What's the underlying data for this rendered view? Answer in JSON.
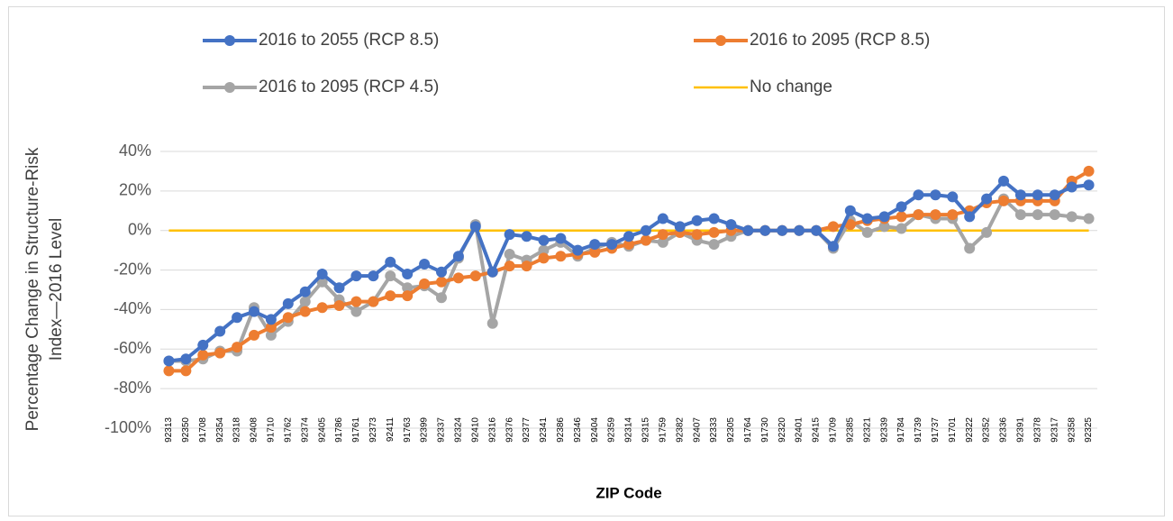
{
  "chart_data": {
    "type": "line",
    "xlabel": "ZIP Code",
    "ylabel": [
      "Percentage Change in Structure-Risk",
      "Index—2016 Level"
    ],
    "categories": [
      "92313",
      "92350",
      "91708",
      "92354",
      "92318",
      "92408",
      "91710",
      "91762",
      "92374",
      "92405",
      "91786",
      "91761",
      "92373",
      "92411",
      "91763",
      "92399",
      "92337",
      "92324",
      "92410",
      "92316",
      "92376",
      "92377",
      "92341",
      "92386",
      "92346",
      "92404",
      "92359",
      "92314",
      "92315",
      "91759",
      "92382",
      "92407",
      "92333",
      "92305",
      "91764",
      "91730",
      "92320",
      "92401",
      "92415",
      "91709",
      "92385",
      "92321",
      "92339",
      "91784",
      "91739",
      "91737",
      "91701",
      "92322",
      "92352",
      "92336",
      "92391",
      "92378",
      "92317",
      "92358",
      "92325"
    ],
    "series": [
      {
        "name": "2016 to 2055 (RCP 8.5)",
        "color": "#4472c4",
        "markers": true,
        "values": [
          -66,
          -65,
          -58,
          -51,
          -44,
          -41,
          -45,
          -37,
          -31,
          -22,
          -29,
          -23,
          -23,
          -16,
          -22,
          -17,
          -21,
          -13,
          2,
          -21,
          -2,
          -3,
          -5,
          -4,
          -10,
          -7,
          -7,
          -3,
          0,
          6,
          2,
          5,
          6,
          3,
          0,
          0,
          0,
          0,
          0,
          -8,
          10,
          6,
          7,
          12,
          18,
          18,
          17,
          7,
          16,
          25,
          18,
          18,
          18,
          22,
          23
        ]
      },
      {
        "name": "2016 to 2095 (RCP 8.5)",
        "color": "#ed7d31",
        "markers": true,
        "values": [
          -71,
          -71,
          -63,
          -62,
          -59,
          -53,
          -49,
          -44,
          -41,
          -39,
          -38,
          -36,
          -36,
          -33,
          -33,
          -27,
          -26,
          -24,
          -23,
          -21,
          -18,
          -18,
          -14,
          -13,
          -12,
          -11,
          -9,
          -7,
          -5,
          -2,
          -1,
          -2,
          -1,
          0,
          0,
          0,
          0,
          0,
          0,
          2,
          3,
          5,
          6,
          7,
          8,
          8,
          8,
          10,
          14,
          15,
          15,
          15,
          15,
          25,
          30
        ]
      },
      {
        "name": "2016 to 2095 (RCP 4.5)",
        "color": "#a5a5a5",
        "markers": true,
        "values": [
          -66,
          -66,
          -65,
          -61,
          -61,
          -39,
          -53,
          -46,
          -36,
          -26,
          -35,
          -41,
          -36,
          -23,
          -29,
          -28,
          -34,
          -14,
          3,
          -47,
          -12,
          -15,
          -10,
          -6,
          -13,
          -9,
          -6,
          -8,
          -5,
          -6,
          -1,
          -5,
          -7,
          -3,
          0,
          0,
          0,
          0,
          0,
          -9,
          5,
          -1,
          2,
          1,
          8,
          6,
          6,
          -9,
          -1,
          16,
          8,
          8,
          8,
          7,
          6
        ]
      },
      {
        "name": "No change",
        "color": "#ffc000",
        "markers": false,
        "values": [
          0,
          0,
          0,
          0,
          0,
          0,
          0,
          0,
          0,
          0,
          0,
          0,
          0,
          0,
          0,
          0,
          0,
          0,
          0,
          0,
          0,
          0,
          0,
          0,
          0,
          0,
          0,
          0,
          0,
          0,
          0,
          0,
          0,
          0,
          0,
          0,
          0,
          0,
          0,
          0,
          0,
          0,
          0,
          0,
          0,
          0,
          0,
          0,
          0,
          0,
          0,
          0,
          0,
          0,
          0
        ]
      }
    ],
    "ylim": [
      -100,
      40
    ],
    "yticks": [
      {
        "value": -100,
        "label": "-100%"
      },
      {
        "value": -80,
        "label": "-80%"
      },
      {
        "value": -60,
        "label": "-60%"
      },
      {
        "value": -40,
        "label": "-40%"
      },
      {
        "value": -20,
        "label": "-20%"
      },
      {
        "value": 0,
        "label": "0%"
      },
      {
        "value": 20,
        "label": "20%"
      },
      {
        "value": 40,
        "label": "40%"
      }
    ],
    "grid": true
  }
}
